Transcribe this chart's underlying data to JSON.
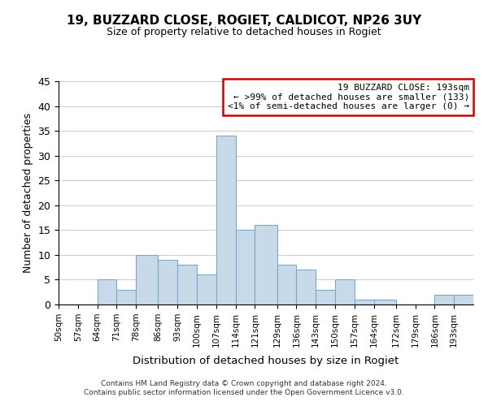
{
  "title": "19, BUZZARD CLOSE, ROGIET, CALDICOT, NP26 3UY",
  "subtitle": "Size of property relative to detached houses in Rogiet",
  "xlabel": "Distribution of detached houses by size in Rogiet",
  "ylabel": "Number of detached properties",
  "bar_color": "#c8daea",
  "bar_edge_color": "#7aa8c8",
  "bin_labels": [
    "50sqm",
    "57sqm",
    "64sqm",
    "71sqm",
    "78sqm",
    "86sqm",
    "93sqm",
    "100sqm",
    "107sqm",
    "114sqm",
    "121sqm",
    "129sqm",
    "136sqm",
    "143sqm",
    "150sqm",
    "157sqm",
    "164sqm",
    "172sqm",
    "179sqm",
    "186sqm",
    "193sqm"
  ],
  "bin_edges": [
    50,
    57,
    64,
    71,
    78,
    86,
    93,
    100,
    107,
    114,
    121,
    129,
    136,
    143,
    150,
    157,
    164,
    172,
    179,
    186,
    193,
    200
  ],
  "counts": [
    0,
    0,
    5,
    3,
    10,
    9,
    8,
    6,
    34,
    15,
    16,
    8,
    7,
    3,
    5,
    1,
    1,
    0,
    0,
    2,
    2
  ],
  "ylim": [
    0,
    45
  ],
  "yticks": [
    0,
    5,
    10,
    15,
    20,
    25,
    30,
    35,
    40,
    45
  ],
  "annotation_title": "19 BUZZARD CLOSE: 193sqm",
  "annotation_line1": "← >99% of detached houses are smaller (133)",
  "annotation_line2": "<1% of semi-detached houses are larger (0) →",
  "annotation_box_color": "#ffffff",
  "annotation_box_edge": "#cc0000",
  "footer1": "Contains HM Land Registry data © Crown copyright and database right 2024.",
  "footer2": "Contains public sector information licensed under the Open Government Licence v3.0."
}
